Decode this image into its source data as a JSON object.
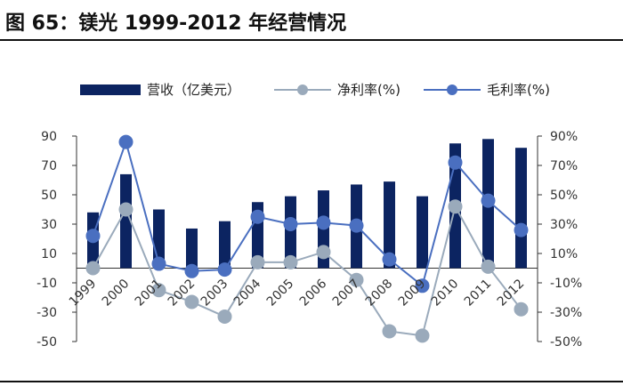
{
  "figure": {
    "title": "图 65：镁光 1999-2012 年经营情况"
  },
  "chart_data": {
    "type": "bar+line",
    "categories": [
      "1999",
      "2000",
      "2001",
      "2002",
      "2003",
      "2004",
      "2005",
      "2006",
      "2007",
      "2008",
      "2009",
      "2010",
      "2011",
      "2012"
    ],
    "series": [
      {
        "name": "营收（亿美元）",
        "type": "bar",
        "axis": "left",
        "values": [
          38,
          64,
          40,
          27,
          32,
          45,
          49,
          53,
          57,
          59,
          49,
          85,
          88,
          82
        ],
        "color": "#0c2461"
      },
      {
        "name": "净利率(%)",
        "type": "line",
        "axis": "right",
        "values": [
          0,
          40,
          -15,
          -23,
          -33,
          4,
          4,
          11,
          -8,
          -43,
          -46,
          42,
          1,
          -28
        ],
        "color": "#9aaabb"
      },
      {
        "name": "毛利率(%)",
        "type": "line",
        "axis": "right",
        "values": [
          22,
          86,
          3,
          -2,
          -1,
          35,
          30,
          31,
          29,
          6,
          -12,
          72,
          46,
          26
        ],
        "color": "#4a6fc0"
      }
    ],
    "y_left": {
      "ylim": [
        -50,
        90
      ],
      "ticks": [
        "90",
        "70",
        "50",
        "30",
        "10",
        "-10",
        "-30",
        "-50"
      ]
    },
    "y_right": {
      "ylim": [
        -50,
        90
      ],
      "ticks": [
        "90%",
        "70%",
        "50%",
        "30%",
        "10%",
        "-10%",
        "-30%",
        "-50%"
      ]
    },
    "legend_position": "top",
    "grid": false
  }
}
